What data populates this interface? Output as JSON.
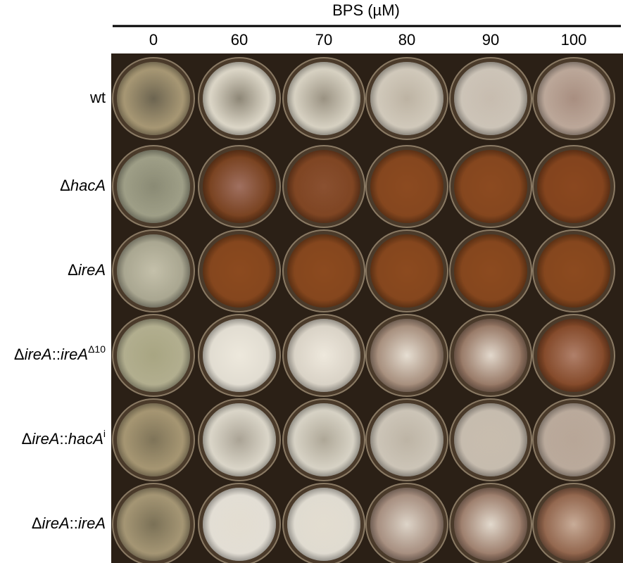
{
  "header": {
    "title": "BPS (µM)",
    "columns": [
      0,
      60,
      70,
      80,
      90,
      100
    ]
  },
  "rows": [
    [
      {
        "text": "wt"
      }
    ],
    [
      {
        "text": "Δ"
      },
      {
        "text": "hacA",
        "style": "italic"
      }
    ],
    [
      {
        "text": "Δ"
      },
      {
        "text": "ireA",
        "style": "italic"
      }
    ],
    [
      {
        "text": "Δ"
      },
      {
        "text": "ireA",
        "style": "italic"
      },
      {
        "text": "::"
      },
      {
        "text": "ireA",
        "style": "italic"
      },
      {
        "text": "Δ10",
        "style": "sup"
      }
    ],
    [
      {
        "text": "Δ"
      },
      {
        "text": "ireA",
        "style": "italic"
      },
      {
        "text": "::"
      },
      {
        "text": "hacA",
        "style": "italic"
      },
      {
        "text": "i",
        "style": "sup"
      }
    ],
    [
      {
        "text": "Δ"
      },
      {
        "text": "ireA",
        "style": "italic"
      },
      {
        "text": "::"
      },
      {
        "text": "ireA",
        "style": "italic"
      }
    ]
  ]
}
